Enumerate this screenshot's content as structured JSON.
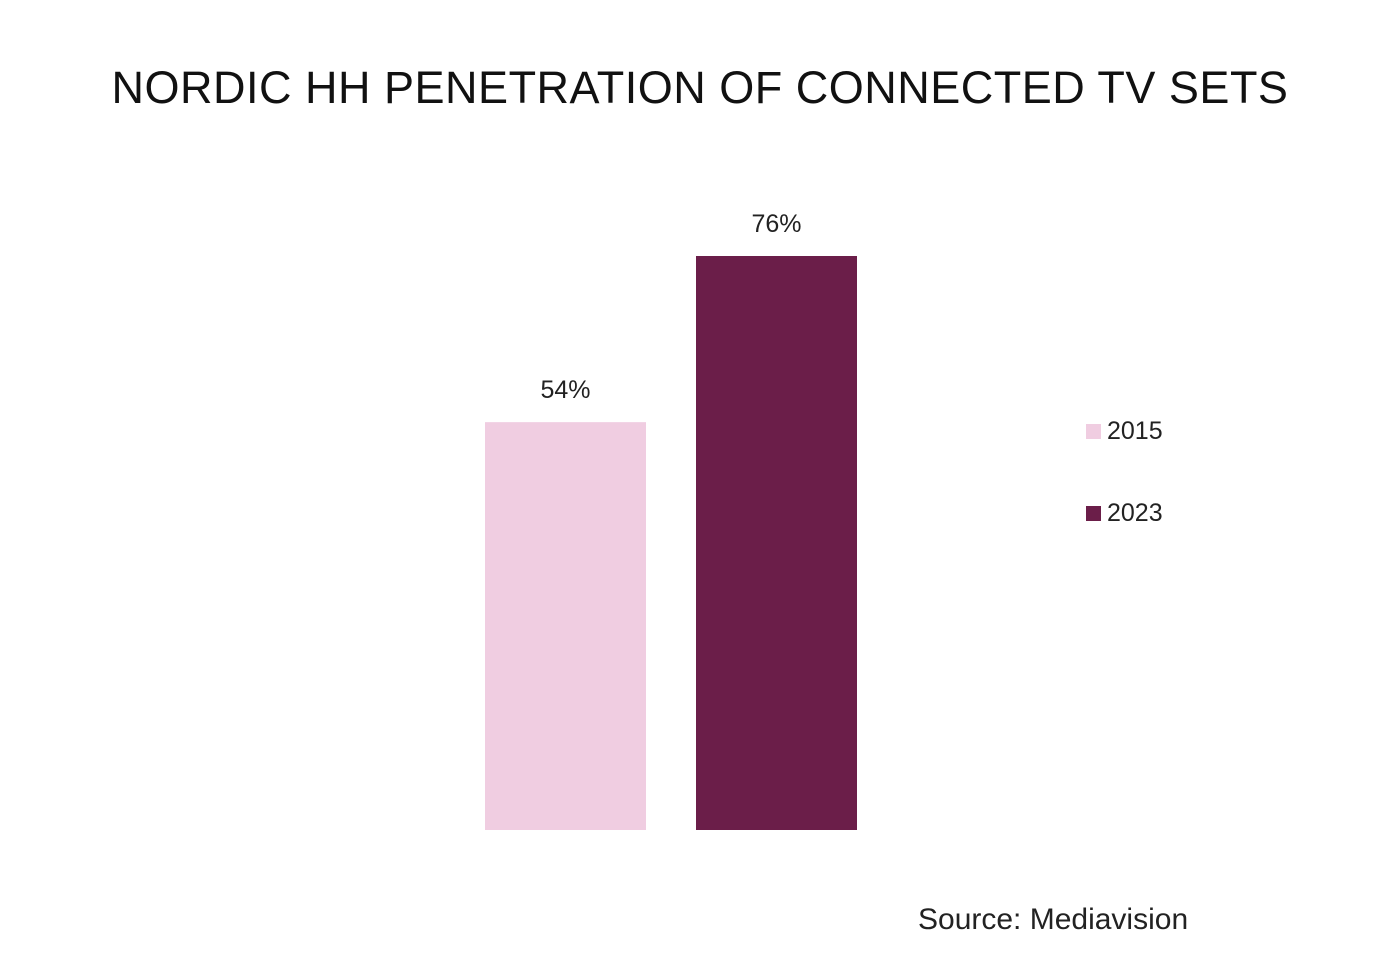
{
  "chart_data": {
    "type": "bar",
    "title": "NORDIC HH PENETRATION OF CONNECTED TV SETS",
    "categories": [
      ""
    ],
    "series": [
      {
        "name": "2015",
        "values": [
          54
        ],
        "label": "54%",
        "color": "#f0cde1"
      },
      {
        "name": "2023",
        "values": [
          76
        ],
        "label": "76%",
        "color": "#6b1e49"
      }
    ],
    "xlabel": "",
    "ylabel": "",
    "ylim": [
      0,
      100
    ],
    "unit": "%",
    "grid": false,
    "legend_position": "right"
  },
  "source": "Source: Mediavision"
}
